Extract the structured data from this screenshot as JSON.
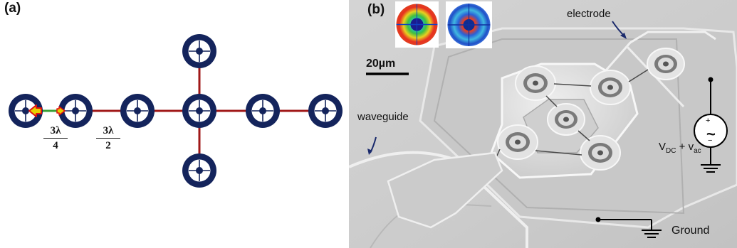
{
  "panel_a": {
    "label": "(a)",
    "spacing_label_1": {
      "numerator": "3λ",
      "denominator": "4"
    },
    "spacing_label_2": {
      "numerator": "3λ",
      "denominator": "2"
    }
  },
  "panel_b": {
    "label": "(b)",
    "scale_bar": "20µm",
    "electrode_label": "electrode",
    "waveguide_label": "waveguide",
    "source_label": "V",
    "source_label_sub1": "DC",
    "source_label_mid": " + v",
    "source_label_sub2": "ac",
    "source_plus": "+",
    "source_minus": "−",
    "source_symbol": "~",
    "ground_label": "Ground"
  },
  "colors": {
    "ring": "#14245c",
    "connector": "#a01818",
    "arrow_fill": "#e8d000",
    "arrow_outline": "#e01010",
    "pointer_arrow": "#1a2a6c"
  }
}
